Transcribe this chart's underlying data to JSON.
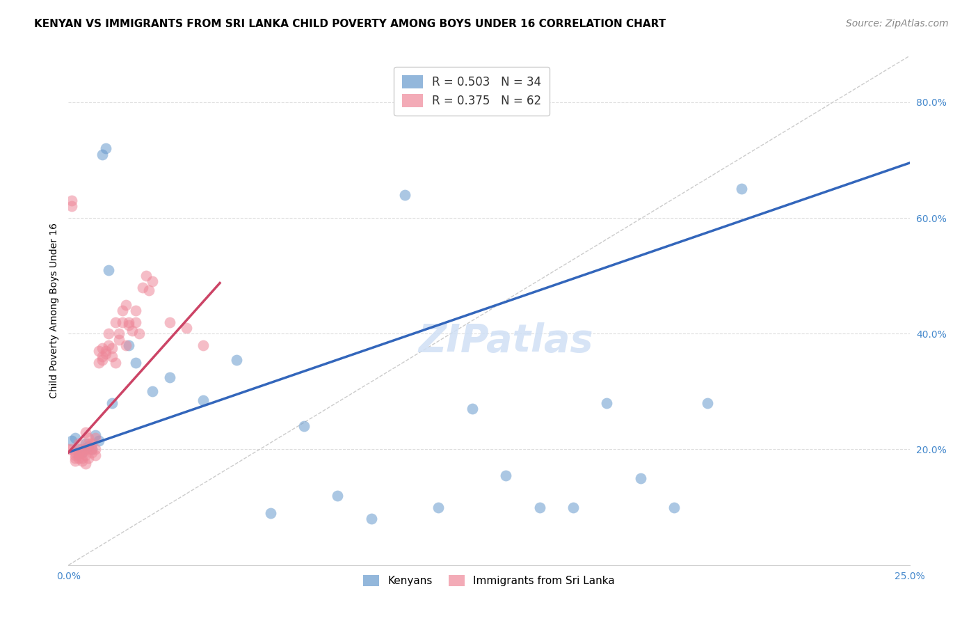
{
  "title": "KENYAN VS IMMIGRANTS FROM SRI LANKA CHILD POVERTY AMONG BOYS UNDER 16 CORRELATION CHART",
  "source": "Source: ZipAtlas.com",
  "ylabel": "Child Poverty Among Boys Under 16",
  "xlim": [
    0.0,
    0.25
  ],
  "ylim": [
    0.0,
    0.88
  ],
  "kenyan_R": 0.503,
  "kenyan_N": 34,
  "srilanka_R": 0.375,
  "srilanka_N": 62,
  "kenyan_color": "#6699cc",
  "srilanka_color": "#ee8899",
  "kenyan_line_color": "#3366bb",
  "srilanka_line_color": "#cc4466",
  "diagonal_color": "#cccccc",
  "background_color": "#ffffff",
  "grid_color": "#dddddd",
  "title_fontsize": 11,
  "axis_label_fontsize": 10,
  "tick_fontsize": 10,
  "legend_fontsize": 12,
  "watermark_fontsize": 40,
  "source_fontsize": 10,
  "kenyan_x": [
    0.001,
    0.002,
    0.003,
    0.004,
    0.005,
    0.006,
    0.007,
    0.008,
    0.009,
    0.01,
    0.011,
    0.012,
    0.013,
    0.018,
    0.02,
    0.025,
    0.03,
    0.04,
    0.05,
    0.06,
    0.07,
    0.08,
    0.09,
    0.1,
    0.11,
    0.12,
    0.13,
    0.14,
    0.15,
    0.16,
    0.17,
    0.18,
    0.19,
    0.2
  ],
  "kenyan_y": [
    0.215,
    0.22,
    0.2,
    0.195,
    0.21,
    0.205,
    0.2,
    0.225,
    0.215,
    0.71,
    0.72,
    0.51,
    0.28,
    0.38,
    0.35,
    0.3,
    0.325,
    0.285,
    0.355,
    0.09,
    0.24,
    0.12,
    0.08,
    0.64,
    0.1,
    0.27,
    0.155,
    0.1,
    0.1,
    0.28,
    0.15,
    0.1,
    0.28,
    0.65
  ],
  "srilanka_x": [
    0.0,
    0.001,
    0.001,
    0.001,
    0.002,
    0.002,
    0.002,
    0.002,
    0.003,
    0.003,
    0.003,
    0.003,
    0.004,
    0.004,
    0.004,
    0.004,
    0.005,
    0.005,
    0.005,
    0.005,
    0.006,
    0.006,
    0.006,
    0.006,
    0.007,
    0.007,
    0.007,
    0.008,
    0.008,
    0.008,
    0.009,
    0.009,
    0.01,
    0.01,
    0.01,
    0.011,
    0.011,
    0.012,
    0.012,
    0.013,
    0.013,
    0.014,
    0.014,
    0.015,
    0.015,
    0.016,
    0.016,
    0.017,
    0.017,
    0.018,
    0.018,
    0.019,
    0.02,
    0.02,
    0.021,
    0.022,
    0.023,
    0.024,
    0.025,
    0.03,
    0.035,
    0.04
  ],
  "srilanka_y": [
    0.2,
    0.62,
    0.63,
    0.2,
    0.195,
    0.19,
    0.185,
    0.18,
    0.21,
    0.195,
    0.185,
    0.19,
    0.2,
    0.195,
    0.185,
    0.18,
    0.23,
    0.2,
    0.19,
    0.175,
    0.22,
    0.21,
    0.2,
    0.185,
    0.195,
    0.21,
    0.2,
    0.22,
    0.2,
    0.19,
    0.35,
    0.37,
    0.36,
    0.375,
    0.355,
    0.37,
    0.365,
    0.38,
    0.4,
    0.375,
    0.36,
    0.35,
    0.42,
    0.4,
    0.39,
    0.42,
    0.44,
    0.45,
    0.38,
    0.42,
    0.415,
    0.405,
    0.44,
    0.42,
    0.4,
    0.48,
    0.5,
    0.475,
    0.49,
    0.42,
    0.41,
    0.38
  ]
}
